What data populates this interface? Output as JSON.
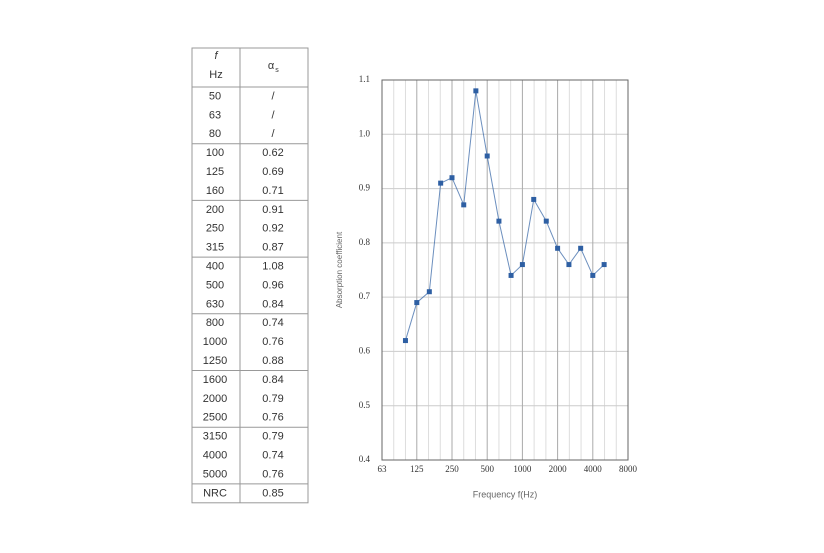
{
  "table": {
    "header": {
      "freq": "f",
      "freq_unit": "Hz",
      "alpha": "α",
      "alpha_sub": "s"
    },
    "rows": [
      [
        "50",
        "/"
      ],
      [
        "63",
        "/"
      ],
      [
        "80",
        "/"
      ],
      [
        "100",
        "0.62"
      ],
      [
        "125",
        "0.69"
      ],
      [
        "160",
        "0.71"
      ],
      [
        "200",
        "0.91"
      ],
      [
        "250",
        "0.92"
      ],
      [
        "315",
        "0.87"
      ],
      [
        "400",
        "1.08"
      ],
      [
        "500",
        "0.96"
      ],
      [
        "630",
        "0.84"
      ],
      [
        "800",
        "0.74"
      ],
      [
        "1000",
        "0.76"
      ],
      [
        "1250",
        "0.88"
      ],
      [
        "1600",
        "0.84"
      ],
      [
        "2000",
        "0.79"
      ],
      [
        "2500",
        "0.76"
      ],
      [
        "3150",
        "0.79"
      ],
      [
        "4000",
        "0.74"
      ],
      [
        "5000",
        "0.76"
      ]
    ],
    "footer": [
      "NRC",
      "0.85"
    ]
  },
  "chart_data": {
    "type": "line",
    "x_label": "Frequency  f(Hz)",
    "y_label": "Absorption coefficient",
    "log_x": true,
    "grid": true,
    "xlim": [
      63,
      8000
    ],
    "xticks": [
      63,
      125,
      250,
      500,
      1000,
      2000,
      4000,
      8000
    ],
    "ylim": [
      0.4,
      1.1
    ],
    "yticks": [
      0.4,
      0.5,
      0.6,
      0.7,
      0.8,
      0.9,
      {
        "value": 1,
        "label": "1.0"
      },
      1.1
    ],
    "x": [
      100,
      125,
      160,
      200,
      250,
      315,
      400,
      500,
      630,
      800,
      1000,
      1250,
      1600,
      2000,
      2500,
      3150,
      4000,
      5000
    ],
    "series": [
      {
        "color": "#2e5fa3",
        "values": [
          0.62,
          0.69,
          0.71,
          0.91,
          0.92,
          0.87,
          1.08,
          0.96,
          0.84,
          0.74,
          0.76,
          0.88,
          0.84,
          0.79,
          0.76,
          0.79,
          0.74,
          0.76
        ]
      }
    ]
  }
}
